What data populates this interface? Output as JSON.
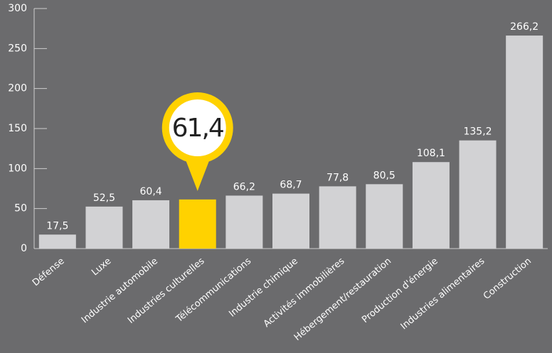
{
  "chart_data": {
    "type": "bar",
    "categories": [
      "Défense",
      "Luxe",
      "Industrie automobile",
      "Industries culturelles",
      "Télécommunications",
      "Industrie chimique",
      "Activités immobilières",
      "Hébergement/restauration",
      "Production d'énergie",
      "Industries alimentaires",
      "Construction"
    ],
    "values": [
      17.5,
      52.5,
      60.4,
      61.4,
      66.2,
      68.7,
      77.8,
      80.5,
      108.1,
      135.2,
      266.2
    ],
    "value_labels": [
      "17,5",
      "52,5",
      "60,4",
      "61,4",
      "66,2",
      "68,7",
      "77,8",
      "80,5",
      "108,1",
      "135,2",
      "266,2"
    ],
    "color": "#d2d2d4",
    "highlight": 3,
    "highlight_color": "#ffd200",
    "ylim": [
      0,
      300
    ],
    "yticks": [
      0,
      50,
      100,
      150,
      200,
      250,
      300
    ]
  }
}
